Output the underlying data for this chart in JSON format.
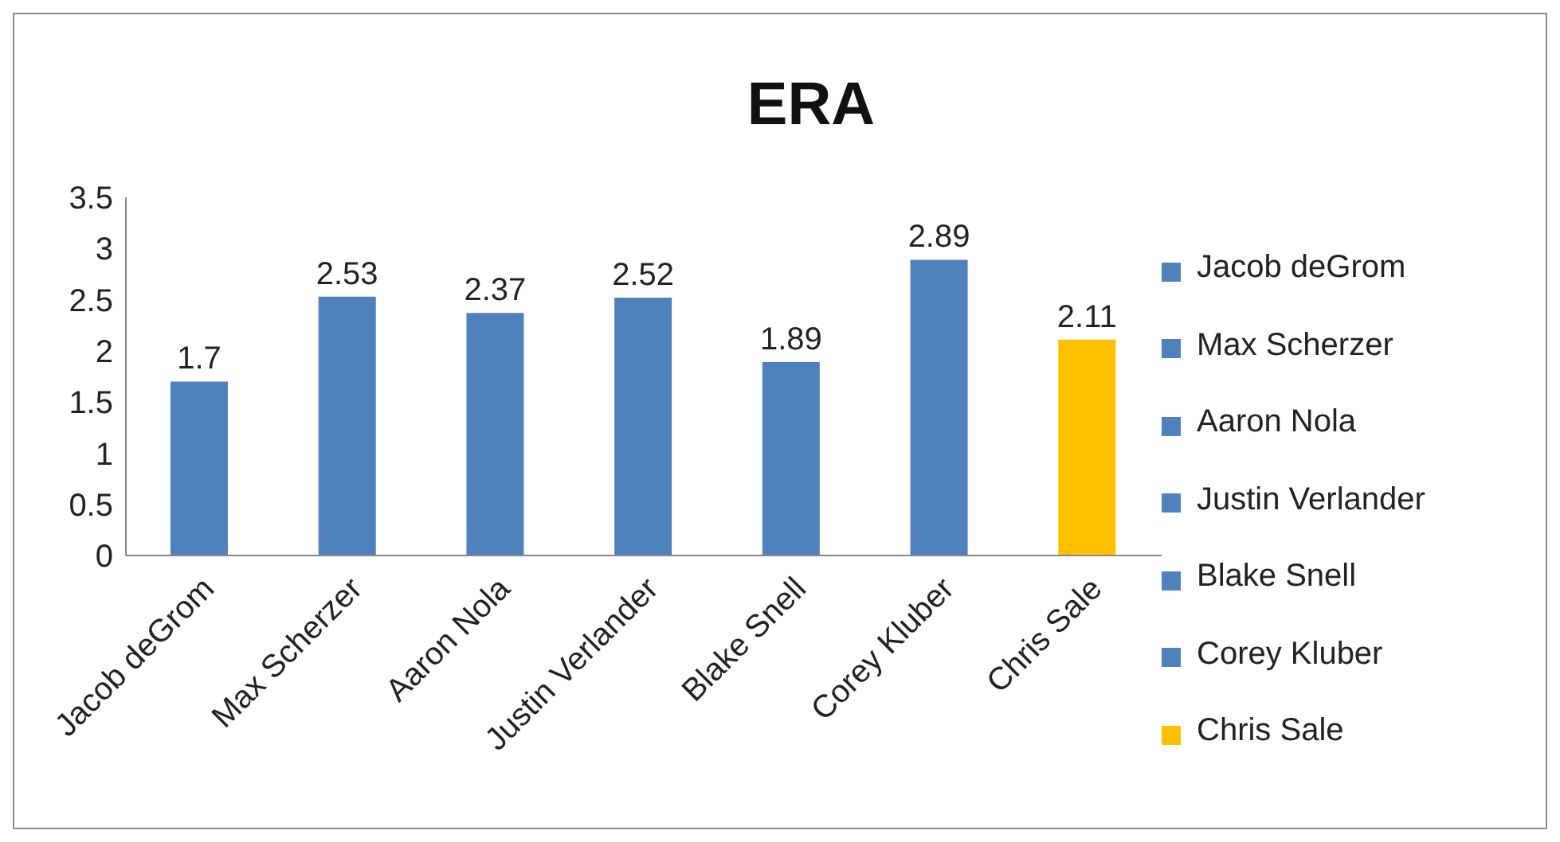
{
  "chart_data": {
    "type": "bar",
    "title": "ERA",
    "categories": [
      "Jacob deGrom",
      "Max Scherzer",
      "Aaron Nola",
      "Justin Verlander",
      "Blake Snell",
      "Corey Kluber",
      "Chris Sale"
    ],
    "stacked": true,
    "series": [
      {
        "name": "Jacob deGrom",
        "color": "#4f81bd",
        "values": [
          1.7,
          null,
          null,
          null,
          null,
          null,
          null
        ]
      },
      {
        "name": "Max Scherzer",
        "color": "#4f81bd",
        "values": [
          null,
          2.53,
          null,
          null,
          null,
          null,
          null
        ]
      },
      {
        "name": "Aaron Nola",
        "color": "#4f81bd",
        "values": [
          null,
          null,
          2.37,
          null,
          null,
          null,
          null
        ]
      },
      {
        "name": "Justin Verlander",
        "color": "#4f81bd",
        "values": [
          null,
          null,
          null,
          2.52,
          null,
          null,
          null
        ]
      },
      {
        "name": "Blake Snell",
        "color": "#4f81bd",
        "values": [
          null,
          null,
          null,
          null,
          1.89,
          null,
          null
        ]
      },
      {
        "name": "Corey Kluber",
        "color": "#4f81bd",
        "values": [
          null,
          null,
          null,
          null,
          null,
          2.89,
          null
        ]
      },
      {
        "name": "Chris Sale",
        "color": "#ffc000",
        "values": [
          null,
          null,
          null,
          null,
          null,
          null,
          2.11
        ]
      }
    ],
    "ylim": [
      0,
      3.5
    ],
    "yticks": [
      0,
      0.5,
      1,
      1.5,
      2,
      2.5,
      3,
      3.5
    ],
    "data_labels": true,
    "legend": "right",
    "grid": false
  }
}
